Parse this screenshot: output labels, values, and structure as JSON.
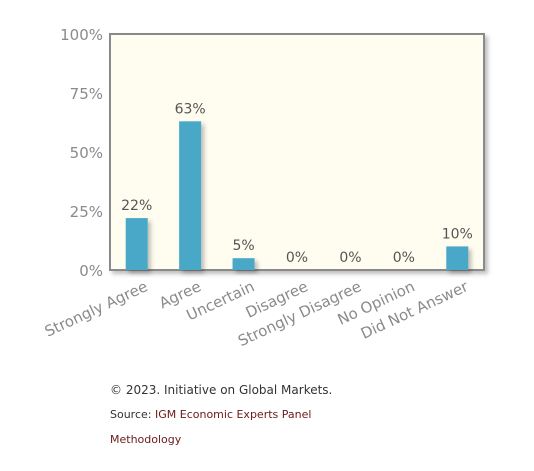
{
  "chart_data": {
    "type": "bar",
    "categories": [
      "Strongly Agree",
      "Agree",
      "Uncertain",
      "Disagree",
      "Strongly Disagree",
      "No Opinion",
      "Did Not Answer"
    ],
    "values": [
      22,
      63,
      5,
      0,
      0,
      0,
      10
    ],
    "value_labels": [
      "22%",
      "63%",
      "5%",
      "0%",
      "0%",
      "0%",
      "10%"
    ],
    "yticks": [
      "0%",
      "25%",
      "50%",
      "75%",
      "100%"
    ],
    "ytick_values": [
      0,
      25,
      50,
      75,
      100
    ],
    "ylim": [
      0,
      100
    ],
    "grid": false,
    "bar_color": "#4aa8c8",
    "plot_background": "#fffdf0",
    "frame_color": "#8a8a8a"
  },
  "footer": {
    "copyright": "© 2023. Initiative on Global Markets.",
    "source_prefix": "Source: ",
    "source_link": "IGM Economic Experts Panel",
    "methodology": "Methodology"
  }
}
